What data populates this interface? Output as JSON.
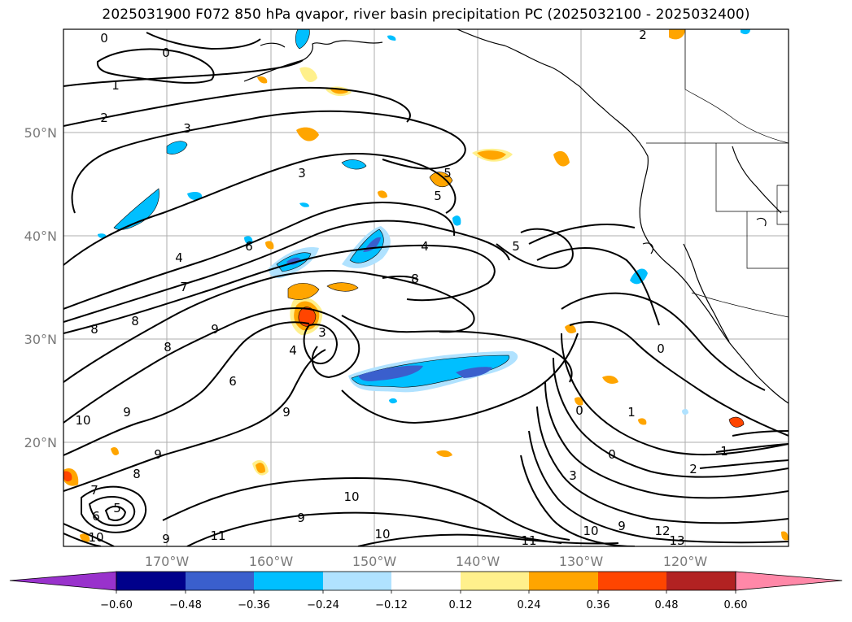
{
  "title": "2025031900 F072 850 hPa qvapor, river basin precipitation PC (2025032100 - 2025032400)",
  "lat_labels": [
    "50°N",
    "40°N",
    "30°N",
    "20°N"
  ],
  "lon_labels": [
    "170°W",
    "160°W",
    "150°W",
    "140°W",
    "130°W",
    "120°W"
  ],
  "contour_labels": [
    "0",
    "0",
    "1",
    "2",
    "3",
    "3",
    "5",
    "5",
    "4",
    "5",
    "4",
    "6",
    "7",
    "8",
    "8",
    "8",
    "9",
    "8",
    "3",
    "4",
    "6",
    "9",
    "9",
    "10",
    "9",
    "8",
    "7",
    "5",
    "6",
    "9",
    "10",
    "11",
    "10",
    "9",
    "10",
    "0",
    "1",
    "0",
    "1",
    "2",
    "3",
    "9",
    "10",
    "12",
    "13",
    "11",
    "0",
    "2"
  ],
  "colorbar": {
    "ticks": [
      "−0.60",
      "−0.48",
      "−0.36",
      "−0.24",
      "−0.12",
      "0.12",
      "0.24",
      "0.36",
      "0.48",
      "0.60"
    ],
    "colors": [
      "#9932cc",
      "#00008b",
      "#3a5fcd",
      "#00bfff",
      "#b0e2ff",
      "#ffffff",
      "#fff08c",
      "#ffa500",
      "#ff4500",
      "#b22222",
      "#ff88a8"
    ]
  }
}
